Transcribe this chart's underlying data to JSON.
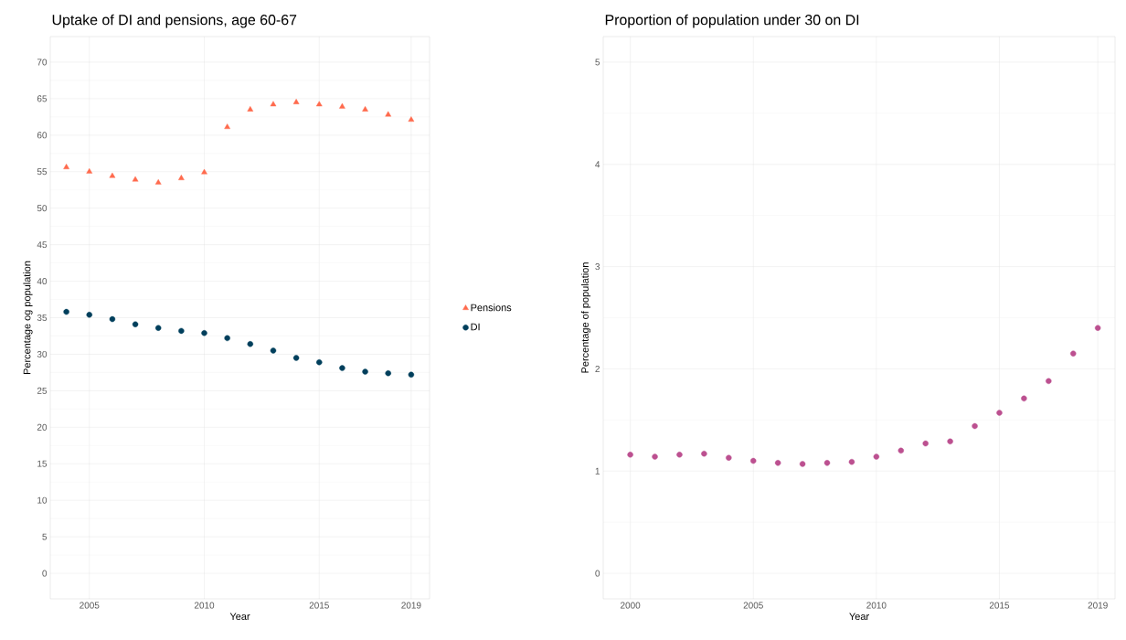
{
  "chart_data": [
    {
      "type": "scatter",
      "title": "Uptake of DI and pensions, age 60-67",
      "xlabel": "Year",
      "ylabel": "Percentage og population",
      "x": [
        2004,
        2005,
        2006,
        2007,
        2008,
        2009,
        2010,
        2011,
        2012,
        2013,
        2014,
        2015,
        2016,
        2017,
        2018,
        2019
      ],
      "series": [
        {
          "name": "Pensions",
          "color": "#ff6a4d",
          "marker": "triangle",
          "values": [
            55.6,
            55.0,
            54.4,
            53.9,
            53.5,
            54.1,
            54.9,
            61.1,
            63.5,
            64.2,
            64.5,
            64.2,
            63.9,
            63.5,
            62.8,
            62.1
          ]
        },
        {
          "name": "DI",
          "color": "#003f5c",
          "marker": "circle",
          "values": [
            35.8,
            35.4,
            34.8,
            34.1,
            33.6,
            33.2,
            32.9,
            32.2,
            31.4,
            30.5,
            29.5,
            28.9,
            28.1,
            27.6,
            27.4,
            27.2
          ]
        }
      ],
      "xlim": [
        2003.3,
        2019.8
      ],
      "ylim": [
        -3.5,
        73.5
      ],
      "xticks": [
        2005,
        2010,
        2015,
        2019
      ],
      "yticks": [
        0,
        5,
        10,
        15,
        20,
        25,
        30,
        35,
        40,
        45,
        50,
        55,
        60,
        65,
        70
      ],
      "grid": true,
      "legend": "right"
    },
    {
      "type": "scatter",
      "title": "Proportion of population under 30 on DI",
      "xlabel": "Year",
      "ylabel": "Percentage of population",
      "x": [
        2000,
        2001,
        2002,
        2003,
        2004,
        2005,
        2006,
        2007,
        2008,
        2009,
        2010,
        2011,
        2012,
        2013,
        2014,
        2015,
        2016,
        2017,
        2018,
        2019
      ],
      "series": [
        {
          "color": "#bc5090",
          "marker": "circle",
          "values": [
            1.16,
            1.14,
            1.16,
            1.17,
            1.13,
            1.1,
            1.08,
            1.07,
            1.08,
            1.09,
            1.14,
            1.2,
            1.27,
            1.29,
            1.44,
            1.57,
            1.71,
            1.88,
            2.15,
            2.4
          ]
        }
      ],
      "xlim": [
        1998.9,
        2019.7
      ],
      "ylim": [
        -0.25,
        5.25
      ],
      "xticks": [
        2000,
        2005,
        2010,
        2015,
        2019
      ],
      "yticks": [
        0,
        1,
        2,
        3,
        4,
        5
      ],
      "grid": true,
      "legend": false
    }
  ]
}
